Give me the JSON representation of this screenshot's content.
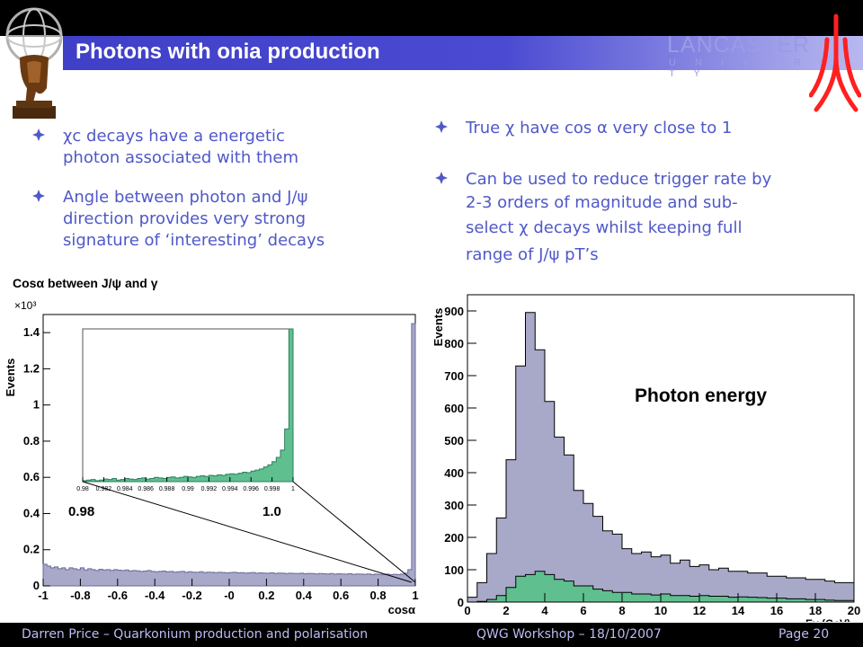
{
  "slide": {
    "title": "Photons with onia production",
    "logo": {
      "name": "LANCASTER",
      "sub": "U N I V E R S I T Y",
      "brand_color": "#ff2020"
    },
    "left_bullets": [
      {
        "lines": [
          "χc decays have a energetic",
          "photon associated with them"
        ]
      },
      {
        "lines": [
          "Angle between photon and J/ψ",
          "direction provides very strong",
          "signature of ‘interesting’ decays"
        ]
      }
    ],
    "right_bullets": [
      {
        "lines": [
          "True χ have cos α very close to 1"
        ]
      },
      {
        "lines": [
          "Can be used to reduce trigger rate by",
          "2-3 orders of magnitude and sub-",
          "select χ decays whilst keeping full",
          "range of J/ψ pT’s"
        ]
      }
    ],
    "footer": {
      "left": "Darren Price – Quarkonium production and polarisation",
      "center": "QWG Workshop – 18/10/2007",
      "right": "Page 20"
    },
    "colors": {
      "accent": "#4f58c8",
      "title_bar": "#4646cc",
      "hist_fill_purple": "#a8a8c8",
      "hist_fill_green": "#5fbf8f"
    }
  },
  "chart_data": [
    {
      "type": "histogram",
      "title": "Cosα between J/ψ and γ",
      "xlabel": "cosα",
      "ylabel": "Events",
      "y_multiplier": "×10³",
      "xlim": [
        -1,
        1
      ],
      "ylim": [
        0,
        1.5
      ],
      "x_ticks": [
        "-1",
        "-0.8",
        "-0.6",
        "-0.4",
        "-0.2",
        "-0",
        "0.2",
        "0.4",
        "0.6",
        "0.8",
        "1"
      ],
      "y_ticks": [
        "0",
        "0.2",
        "0.4",
        "0.6",
        "0.8",
        "1",
        "1.2",
        "1.4"
      ],
      "series": [
        {
          "values": [
            0.12,
            0.11,
            0.1,
            0.105,
            0.095,
            0.1,
            0.09,
            0.1,
            0.095,
            0.09,
            0.1,
            0.088,
            0.095,
            0.09,
            0.085,
            0.092,
            0.088,
            0.09,
            0.085,
            0.09,
            0.087,
            0.085,
            0.088,
            0.082,
            0.085,
            0.083,
            0.08,
            0.082,
            0.085,
            0.08,
            0.078,
            0.08,
            0.082,
            0.078,
            0.08,
            0.076,
            0.078,
            0.08,
            0.075,
            0.078,
            0.076,
            0.075,
            0.078,
            0.074,
            0.076,
            0.075,
            0.073,
            0.075,
            0.074,
            0.072,
            0.074,
            0.075,
            0.072,
            0.073,
            0.071,
            0.072,
            0.074,
            0.07,
            0.072,
            0.071,
            0.07,
            0.072,
            0.069,
            0.071,
            0.07,
            0.068,
            0.07,
            0.069,
            0.068,
            0.07,
            0.067,
            0.069,
            0.068,
            0.066,
            0.068,
            0.067,
            0.066,
            0.068,
            0.065,
            0.067,
            0.066,
            0.065,
            0.067,
            0.064,
            0.066,
            0.065,
            0.064,
            0.066,
            0.063,
            0.065,
            0.064,
            0.063,
            0.065,
            0.062,
            0.064,
            0.063,
            0.065,
            0.07,
            0.09,
            1.45
          ]
        }
      ]
    },
    {
      "type": "histogram",
      "title": "",
      "xlim": [
        0.98,
        1
      ],
      "ylim": [
        0,
        1.45
      ],
      "x_ticks": [
        "0.98",
        "0.982",
        "0.984",
        "0.986",
        "0.988",
        "0.99",
        "0.992",
        "0.994",
        "0.996",
        "0.998",
        "1"
      ],
      "range_labels": [
        "0.98",
        "1.0"
      ],
      "series": [
        {
          "values": [
            0.01,
            0.015,
            0.02,
            0.01,
            0.015,
            0.025,
            0.02,
            0.03,
            0.015,
            0.02,
            0.03,
            0.025,
            0.02,
            0.03,
            0.035,
            0.025,
            0.03,
            0.04,
            0.035,
            0.03,
            0.04,
            0.045,
            0.035,
            0.04,
            0.05,
            0.045,
            0.04,
            0.05,
            0.055,
            0.05,
            0.06,
            0.055,
            0.065,
            0.06,
            0.07,
            0.075,
            0.07,
            0.08,
            0.09,
            0.085,
            0.1,
            0.11,
            0.12,
            0.14,
            0.16,
            0.19,
            0.23,
            0.3,
            0.5,
            1.45
          ]
        }
      ]
    },
    {
      "type": "histogram",
      "title": "Photon energy",
      "xlabel": "Eγ (GeV)",
      "ylabel": "Events",
      "xlim": [
        0,
        20
      ],
      "ylim": [
        0,
        950
      ],
      "x_ticks": [
        "0",
        "2",
        "4",
        "6",
        "8",
        "10",
        "12",
        "14",
        "16",
        "18",
        "20"
      ],
      "y_ticks": [
        "0",
        "100",
        "200",
        "300",
        "400",
        "500",
        "600",
        "700",
        "800",
        "900"
      ],
      "bin_width": 0.5,
      "series": [
        {
          "values": [
            15,
            60,
            150,
            260,
            440,
            730,
            895,
            780,
            620,
            510,
            455,
            345,
            305,
            265,
            220,
            210,
            165,
            150,
            155,
            140,
            145,
            120,
            130,
            110,
            115,
            100,
            105,
            95,
            95,
            90,
            90,
            80,
            80,
            75,
            75,
            70,
            70,
            65,
            60,
            60
          ]
        },
        {
          "values": [
            0,
            2,
            8,
            20,
            45,
            80,
            85,
            95,
            85,
            70,
            65,
            50,
            50,
            40,
            35,
            30,
            30,
            25,
            25,
            22,
            25,
            20,
            20,
            18,
            20,
            18,
            18,
            15,
            16,
            15,
            14,
            12,
            12,
            10,
            10,
            8,
            8,
            6,
            5,
            5
          ]
        }
      ]
    }
  ]
}
